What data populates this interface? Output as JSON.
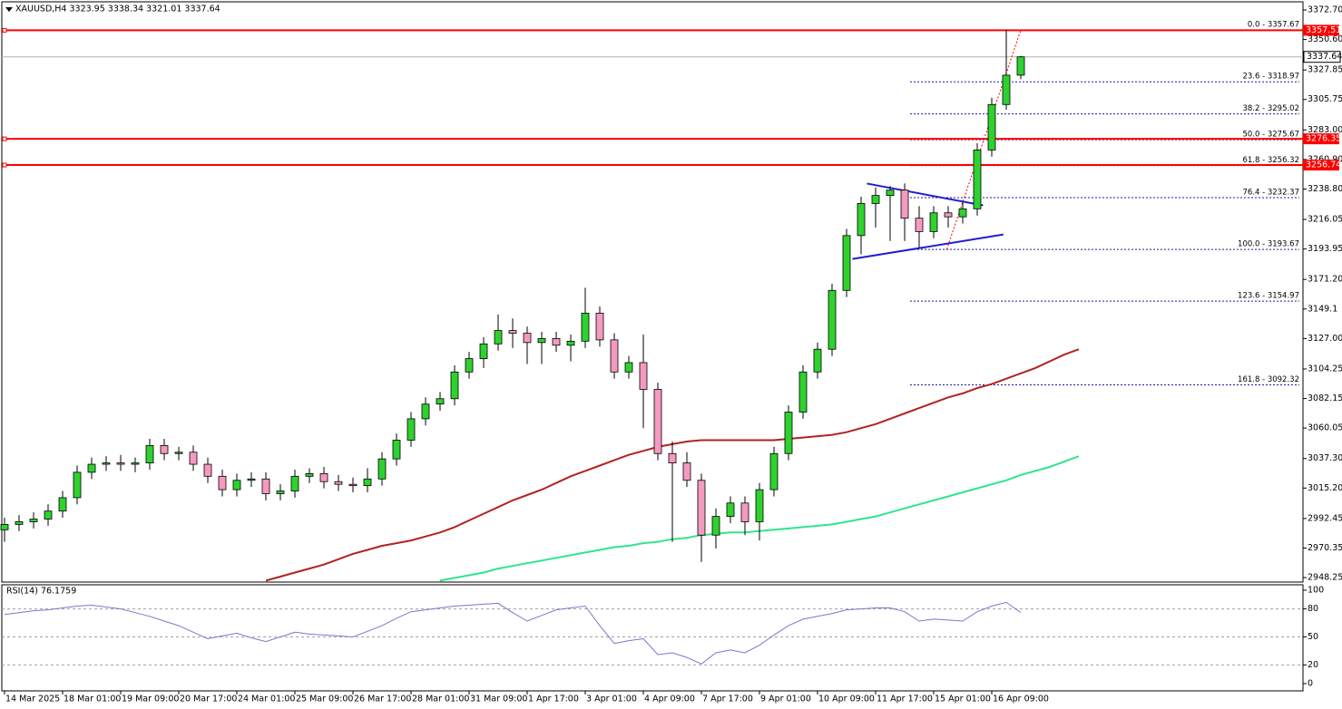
{
  "chart_data": [
    {
      "type": "candlestick",
      "title": "XAUUSD,H4  3323.95 3338.34 3321.01 3337.64",
      "categories": [
        "14 Mar 2025",
        null,
        null,
        null,
        "18 Mar 01:00",
        null,
        null,
        null,
        "19 Mar 09:00",
        null,
        null,
        null,
        "20 Mar 17:00",
        null,
        null,
        null,
        "24 Mar 01:00",
        null,
        null,
        null,
        "25 Mar 09:00",
        null,
        null,
        null,
        "26 Mar 17:00",
        null,
        null,
        null,
        "28 Mar 01:00",
        null,
        null,
        null,
        "31 Mar 09:00",
        null,
        null,
        null,
        "1 Apr 17:00",
        null,
        null,
        null,
        "3 Apr 01:00",
        null,
        null,
        null,
        "4 Apr 09:00",
        null,
        null,
        null,
        "7 Apr 17:00",
        null,
        null,
        null,
        "9 Apr 01:00",
        null,
        null,
        null,
        "10 Apr 09:00",
        null,
        null,
        null,
        "11 Apr 17:00",
        null,
        null,
        null,
        "15 Apr 01:00",
        null,
        null,
        null,
        "16 Apr 09:00",
        null,
        null,
        null,
        null,
        null,
        null
      ],
      "open": [
        2984,
        2988,
        2990,
        2992,
        2998,
        3008,
        3027,
        3033,
        3034,
        3033,
        3034,
        3047,
        3041,
        3042,
        3033,
        3024,
        3014,
        3021,
        3022,
        3011,
        3013,
        3024,
        3026,
        3020,
        3018,
        3017,
        3022,
        3037,
        3051,
        3067,
        3078,
        3082,
        3102,
        3112,
        3123,
        3133,
        3131,
        3124,
        3127,
        3122,
        3125,
        3146,
        3126,
        3102,
        3109,
        3089,
        3041,
        3034,
        3021,
        2980,
        2994,
        3004,
        2990,
        3014,
        3041,
        3072,
        3102,
        3119,
        3163,
        3204,
        3228,
        3234,
        3238,
        3217,
        3207,
        3221,
        3218,
        3224,
        3268,
        3302,
        3323.95,
        null,
        null,
        null,
        null
      ],
      "high": [
        2993,
        2995,
        2997,
        3003,
        3013,
        3032,
        3038,
        3039,
        3040,
        3038,
        3052,
        3052,
        3046,
        3047,
        3038,
        3029,
        3026,
        3027,
        3027,
        3018,
        3029,
        3030,
        3031,
        3025,
        3023,
        3030,
        3042,
        3056,
        3072,
        3083,
        3087,
        3107,
        3117,
        3128,
        3145,
        3142,
        3136,
        3132,
        3132,
        3130,
        3165,
        3151,
        3131,
        3114,
        3130,
        3094,
        3050,
        3042,
        3026,
        3000,
        3009,
        3009,
        3019,
        3046,
        3077,
        3107,
        3124,
        3168,
        3209,
        3233,
        3240,
        3241,
        3243,
        3226,
        3226,
        3226,
        3229,
        3273,
        3307,
        3357.67,
        3338.34,
        null,
        null,
        null,
        null
      ],
      "low": [
        2975,
        2983,
        2985,
        2987,
        2993,
        3003,
        3022,
        3028,
        3028,
        3027,
        3029,
        3036,
        3036,
        3028,
        3019,
        3009,
        3009,
        3016,
        3006,
        3006,
        3008,
        3019,
        3015,
        3013,
        3012,
        3012,
        3017,
        3032,
        3046,
        3062,
        3073,
        3077,
        3097,
        3105,
        3118,
        3120,
        3108,
        3108,
        3117,
        3110,
        3120,
        3121,
        3097,
        3097,
        3060,
        3036,
        2975,
        3016,
        2960,
        2970,
        2989,
        2980,
        2976,
        3009,
        3036,
        3067,
        3097,
        3114,
        3158,
        3190,
        3210,
        3200,
        3200,
        3195,
        3202,
        3210,
        3213,
        3219,
        3263,
        3298,
        3321.01,
        null,
        null,
        null,
        null
      ],
      "close": [
        2988,
        2990,
        2992,
        2998,
        3008,
        3027,
        3033,
        3034,
        3033,
        3034,
        3047,
        3041,
        3042,
        3033,
        3024,
        3014,
        3021,
        3022,
        3011,
        3013,
        3024,
        3026,
        3020,
        3018,
        3017,
        3022,
        3037,
        3051,
        3067,
        3078,
        3082,
        3102,
        3112,
        3123,
        3133,
        3131,
        3124,
        3127,
        3122,
        3125,
        3146,
        3126,
        3102,
        3109,
        3089,
        3041,
        3034,
        3021,
        2980,
        2994,
        3004,
        2990,
        3014,
        3041,
        3072,
        3102,
        3119,
        3163,
        3204,
        3228,
        3234,
        3238,
        3217,
        3207,
        3221,
        3218,
        3224,
        3268,
        3302,
        3323.95,
        3337.64,
        null,
        null,
        null,
        null
      ],
      "up_color": "#2ed12e",
      "down_color": "#f49ac1",
      "ylim": [
        2944.9,
        3378.8
      ],
      "yticks": [
        {
          "value": 3372.7,
          "label": "3372.70"
        },
        {
          "value": 3350.6,
          "label": "3350.60"
        },
        {
          "value": 3327.85,
          "label": "3327.85"
        },
        {
          "value": 3305.75,
          "label": "3305.75"
        },
        {
          "value": 3283,
          "label": "3283.00"
        },
        {
          "value": 3260.9,
          "label": "3260.90"
        },
        {
          "value": 3238.8,
          "label": "3238.80"
        },
        {
          "value": 3216.05,
          "label": "3216.05"
        },
        {
          "value": 3193.95,
          "label": "3193.95"
        },
        {
          "value": 3171.2,
          "label": "3171.20"
        },
        3149.1,
        {
          "value": 3127,
          "label": "3127.00"
        },
        3104.25,
        3082.15,
        3060.05,
        {
          "value": 3037.3,
          "label": "3037.30"
        },
        {
          "value": 3015.2,
          "label": "3015.20"
        },
        2992.45,
        2970.35,
        2948.25
      ],
      "moving_averages": [
        {
          "color": "#b22222",
          "values": [
            null,
            null,
            null,
            null,
            null,
            null,
            null,
            null,
            null,
            null,
            null,
            null,
            null,
            null,
            null,
            null,
            null,
            null,
            2946,
            2949,
            2952,
            2955,
            2958,
            2962,
            2966,
            2969,
            2972,
            2974,
            2976,
            2979,
            2982,
            2986,
            2991,
            2996,
            3001,
            3006,
            3010,
            3014,
            3019,
            3024,
            3028,
            3032,
            3036,
            3040,
            3043,
            3046,
            3048,
            3050,
            3051,
            3051,
            3051,
            3051,
            3051,
            3051,
            3052,
            3053,
            3054,
            3055,
            3057,
            3060,
            3063,
            3067,
            3071,
            3075,
            3079,
            3083,
            3086,
            3090,
            3093,
            3097,
            3101,
            3105,
            3110,
            3115,
            3119
          ]
        },
        {
          "color": "#2ee68a",
          "values": [
            null,
            null,
            null,
            null,
            null,
            null,
            null,
            null,
            null,
            null,
            null,
            null,
            null,
            null,
            null,
            null,
            null,
            null,
            null,
            null,
            null,
            null,
            null,
            null,
            null,
            null,
            null,
            null,
            null,
            null,
            2946,
            2948,
            2950,
            2952,
            2955,
            2957,
            2959,
            2961,
            2963,
            2965,
            2967,
            2969,
            2971,
            2972,
            2974,
            2975,
            2977,
            2978,
            2980,
            2981,
            2982,
            2982,
            2983,
            2984,
            2985,
            2986,
            2987,
            2988,
            2990,
            2992,
            2994,
            2997,
            3000,
            3003,
            3006,
            3009,
            3012,
            3015,
            3018,
            3021,
            3025,
            3028,
            3031,
            3035,
            3039
          ]
        }
      ],
      "levels": [
        {
          "value": 3357.51,
          "color": "#ff0000"
        },
        {
          "value": 3276.35,
          "color": "#ff0000"
        },
        {
          "value": 3256.74,
          "color": "#ff0000"
        }
      ],
      "current_price": 3337.64,
      "fibonacci": [
        {
          "value": 3357.67,
          "label": "0.0 - 3357.67"
        },
        {
          "value": 3318.97,
          "label": "23.6 - 3318.97"
        },
        {
          "value": 3295.02,
          "label": "38.2 - 3295.02"
        },
        {
          "value": 3275.67,
          "label": "50.0 - 3275.67"
        },
        {
          "value": 3256.32,
          "label": "61.8 - 3256.32"
        },
        {
          "value": 3232.37,
          "label": "76.4 - 3232.37"
        },
        {
          "value": 3193.67,
          "label": "100.0 - 3193.67"
        },
        {
          "value": 3154.97,
          "label": "123.6 - 3154.97"
        },
        {
          "value": 3092.32,
          "label": "161.8 - 3092.32"
        }
      ],
      "fib_color": "#1a1aa6",
      "fib_diagonal": {
        "x": [
          64.9,
          70
        ],
        "y": [
          3193.67,
          3357.67
        ]
      },
      "trendlines": [
        {
          "color": "#1f1fd0",
          "x": [
            59.4,
            67.4
          ],
          "y": [
            3242.9,
            3226.6
          ]
        },
        {
          "color": "#1f1fd0",
          "x": [
            58.4,
            68.8
          ],
          "y": [
            3186.5,
            3204.8
          ]
        }
      ]
    },
    {
      "type": "line",
      "title": "RSI(14) 76.1759",
      "color": "#8a70c8",
      "values": [
        74,
        76,
        78,
        79,
        81,
        83,
        84,
        82,
        80,
        76,
        72,
        67,
        62,
        55,
        48,
        51,
        54,
        49,
        45,
        50,
        55,
        53,
        52,
        51,
        50,
        56,
        62,
        70,
        77,
        79,
        81,
        83,
        84,
        85,
        86,
        76,
        67,
        73,
        79,
        81,
        83,
        62,
        43,
        46,
        48,
        31,
        33,
        28,
        21,
        33,
        36,
        33,
        41,
        52,
        62,
        69,
        72,
        75,
        79,
        80,
        81,
        81,
        77,
        67,
        69,
        68,
        67,
        77,
        83,
        87,
        76.1759,
        null,
        null,
        null,
        null
      ],
      "ylim": [
        -7.8,
        105.8
      ],
      "yticks": [
        100,
        80,
        50,
        20,
        0
      ],
      "levels": [
        80,
        50,
        20
      ]
    }
  ]
}
